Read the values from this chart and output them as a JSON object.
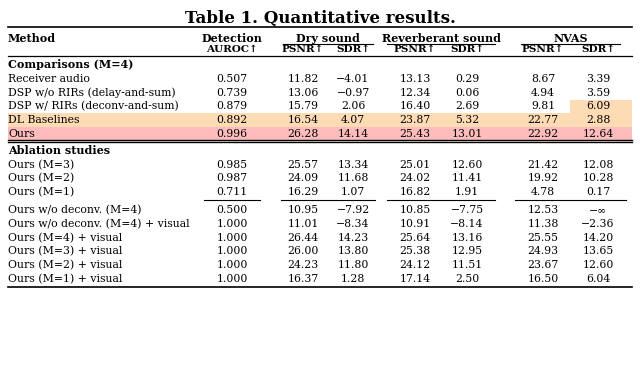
{
  "title": "Table 1. Quantitative results.",
  "col_headers_line1_labels": [
    "Method",
    "Detection",
    "Dry sound",
    "Reverberant sound",
    "NVAS"
  ],
  "col_headers_line2": [
    "AUROC↑",
    "PSNR↑",
    "SDR↑",
    "PSNR↑",
    "SDR↑",
    "PSNR↑",
    "SDR↑"
  ],
  "group1_title": "Comparisons (M=4)",
  "group1_rows": [
    [
      "Receiver audio",
      "0.507",
      "11.82",
      "−4.01",
      "13.13",
      "0.29",
      "8.67",
      "3.39"
    ],
    [
      "DSP w/o RIRs (delay-and-sum)",
      "0.739",
      "13.06",
      "−0.97",
      "12.34",
      "0.06",
      "4.94",
      "3.59"
    ],
    [
      "DSP w/ RIRs (deconv-and-sum)",
      "0.879",
      "15.79",
      "2.06",
      "16.40",
      "2.69",
      "9.81",
      "6.09"
    ],
    [
      "DL Baselines",
      "0.892",
      "16.54",
      "4.07",
      "23.87",
      "5.32",
      "22.77",
      "2.88"
    ],
    [
      "Ours",
      "0.996",
      "26.28",
      "14.14",
      "25.43",
      "13.01",
      "22.92",
      "12.64"
    ]
  ],
  "group1_row_bg": [
    "none",
    "none",
    "none",
    "#FDDCB5",
    "#FFBCBC"
  ],
  "dsp_sdr_highlight": "#FDDCB5",
  "group2_title": "Ablation studies",
  "group2_rows": [
    [
      "Ours (M=3)",
      "0.985",
      "25.57",
      "13.34",
      "25.01",
      "12.60",
      "21.42",
      "12.08"
    ],
    [
      "Ours (M=2)",
      "0.987",
      "24.09",
      "11.68",
      "24.02",
      "11.41",
      "19.92",
      "10.28"
    ],
    [
      "Ours (M=1)",
      "0.711",
      "16.29",
      "1.07",
      "16.82",
      "1.91",
      "4.78",
      "0.17"
    ]
  ],
  "group3_rows": [
    [
      "Ours w/o deconv. (M=4)",
      "0.500",
      "10.95",
      "−7.92",
      "10.85",
      "−7.75",
      "12.53",
      "−∞"
    ],
    [
      "Ours w/o deconv. (M=4) + visual",
      "1.000",
      "11.01",
      "−8.34",
      "10.91",
      "−8.14",
      "11.38",
      "−2.36"
    ],
    [
      "Ours (M=4) + visual",
      "1.000",
      "26.44",
      "14.23",
      "25.64",
      "13.16",
      "25.55",
      "14.20"
    ],
    [
      "Ours (M=3) + visual",
      "1.000",
      "26.00",
      "13.80",
      "25.38",
      "12.95",
      "24.93",
      "13.65"
    ],
    [
      "Ours (M=2) + visual",
      "1.000",
      "24.23",
      "11.80",
      "24.12",
      "11.51",
      "23.67",
      "12.60"
    ],
    [
      "Ours (M=1) + visual",
      "1.000",
      "16.37",
      "1.28",
      "17.14",
      "2.50",
      "16.50",
      "6.04"
    ]
  ],
  "bg_color": "#ffffff"
}
